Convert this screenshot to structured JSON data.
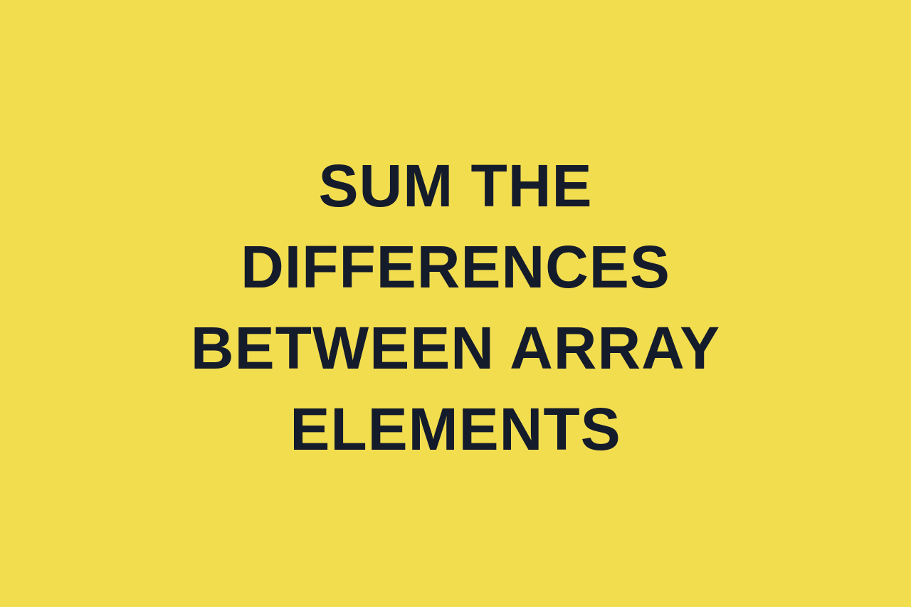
{
  "colors": {
    "background": "#F2DD4F",
    "text": "#141B2B"
  },
  "title": {
    "lines": [
      "SUM THE",
      "DIFFERENCES",
      "BETWEEN ARRAY",
      "ELEMENTS"
    ]
  }
}
